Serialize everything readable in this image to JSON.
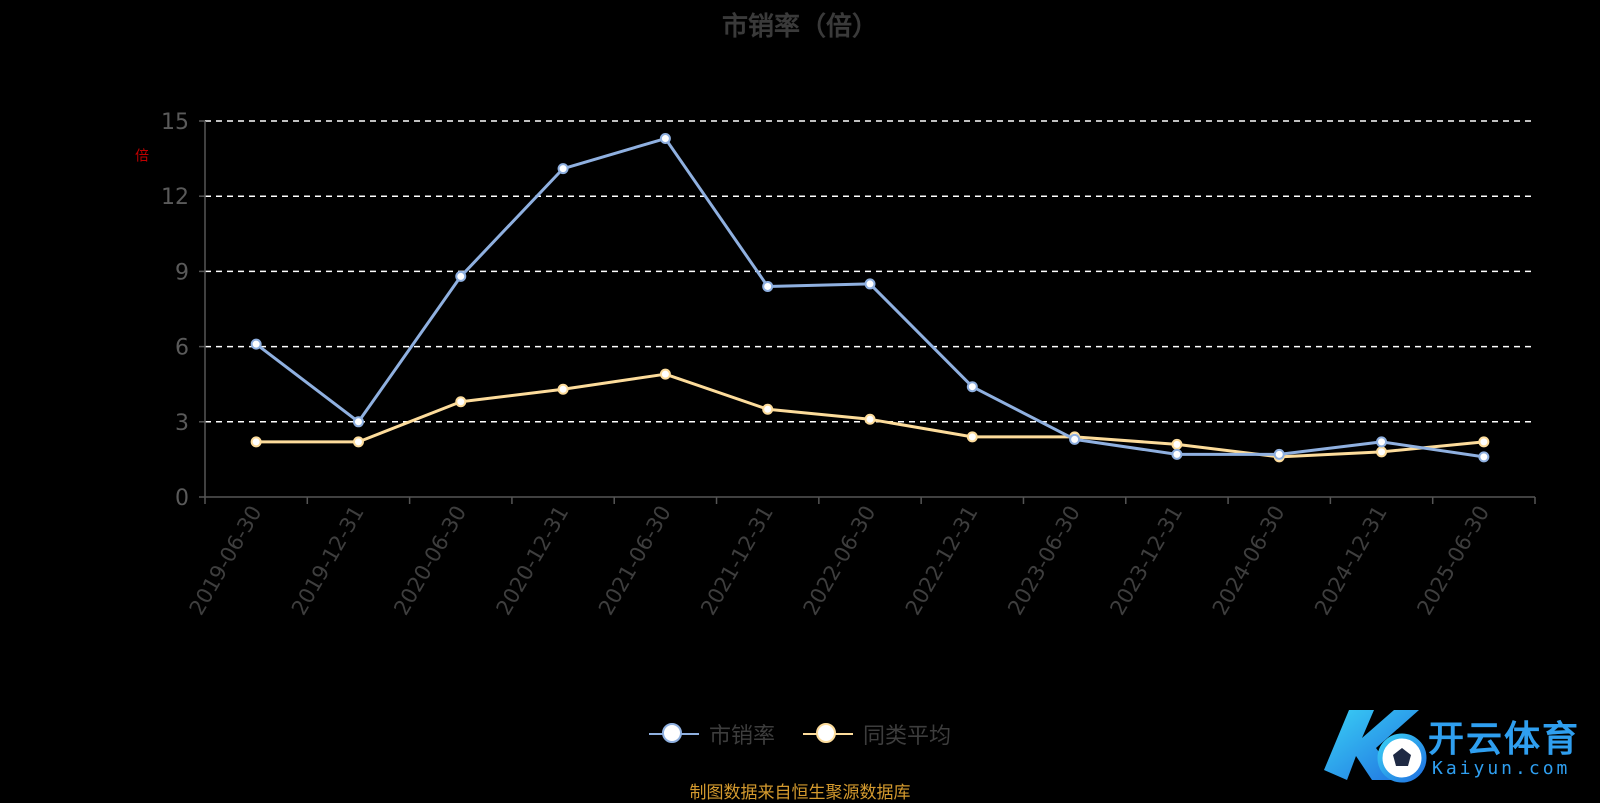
{
  "title": "市销率（倍）",
  "unit_label": "倍",
  "source": "制图数据来自恒生聚源数据库",
  "logo": {
    "text": "开云体育",
    "sub": "Kaiyun.com"
  },
  "colors": {
    "series1": "#8fb0e0",
    "series2": "#fddc9b",
    "grid": "#ffffff",
    "axis": "#555555"
  },
  "chart_data": {
    "type": "line",
    "title": "市销率（倍）",
    "ylim": [
      0,
      15
    ],
    "yticks": [
      0,
      3,
      6,
      9,
      12,
      15
    ],
    "grid": true,
    "legend_position": "bottom",
    "categories": [
      "2019-06-30",
      "2019-12-31",
      "2020-06-30",
      "2020-12-31",
      "2021-06-30",
      "2021-12-31",
      "2022-06-30",
      "2022-12-31",
      "2023-06-30",
      "2023-12-31",
      "2024-06-30",
      "2024-12-31",
      "2025-06-30"
    ],
    "series": [
      {
        "name": "市销率",
        "values": [
          6.1,
          3.0,
          8.8,
          13.1,
          14.3,
          8.4,
          8.5,
          4.4,
          2.3,
          1.7,
          1.7,
          2.2,
          1.6
        ]
      },
      {
        "name": "同类平均",
        "values": [
          2.2,
          2.2,
          3.8,
          4.3,
          4.9,
          3.5,
          3.1,
          2.4,
          2.4,
          2.1,
          1.6,
          1.8,
          2.2
        ]
      }
    ]
  }
}
